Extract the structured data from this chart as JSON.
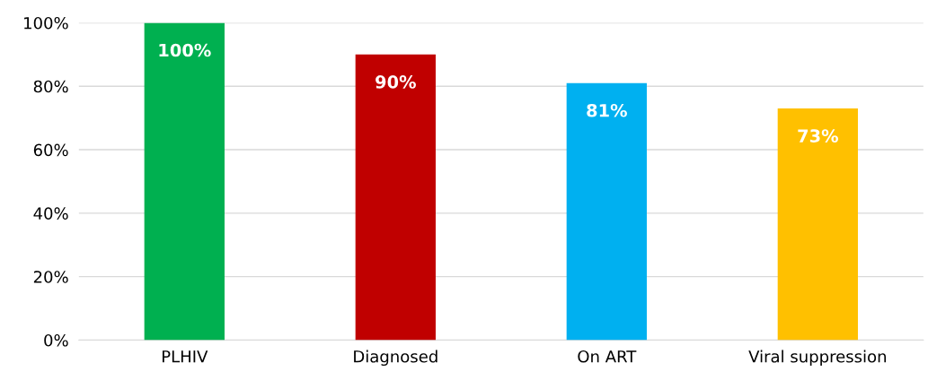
{
  "chart_data": {
    "type": "bar",
    "categories": [
      "PLHIV",
      "Diagnosed",
      "On ART",
      "Viral suppression"
    ],
    "values": [
      100,
      90,
      81,
      73
    ],
    "colors": [
      "#00b050",
      "#c00000",
      "#00b0f0",
      "#ffc000"
    ],
    "value_labels": [
      "100%",
      "90%",
      "81%",
      "73%"
    ],
    "ylim": [
      0,
      100
    ],
    "yticks": [
      {
        "value": 0,
        "label": "0%"
      },
      {
        "value": 20,
        "label": "20%"
      },
      {
        "value": 40,
        "label": "40%"
      },
      {
        "value": 60,
        "label": "60%"
      },
      {
        "value": 80,
        "label": "80%"
      },
      {
        "value": 100,
        "label": "100%"
      }
    ],
    "grid": "y",
    "legend": false
  }
}
